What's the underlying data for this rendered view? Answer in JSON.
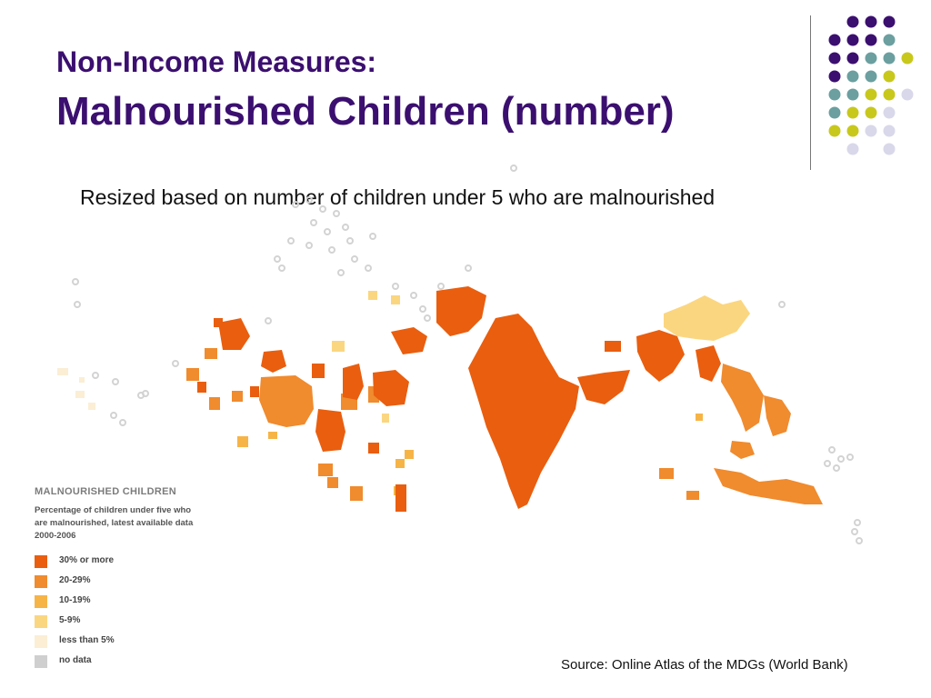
{
  "title": {
    "line1": "Non-Income Measures:",
    "line2": "Malnourished Children (number)"
  },
  "subtitle": "Resized based on number of children under 5 who are malnourished",
  "legend": {
    "title": "MALNOURISHED CHILDREN",
    "description": "Percentage of children under five who are malnourished, latest available data 2000-2006",
    "items": [
      {
        "label": "30% or more",
        "color": "#e95e0f"
      },
      {
        "label": "20-29%",
        "color": "#f08b2e"
      },
      {
        "label": "10-19%",
        "color": "#f6b447"
      },
      {
        "label": "5-9%",
        "color": "#fbd680"
      },
      {
        "label": "less than 5%",
        "color": "#fbeed4"
      },
      {
        "label": "no data",
        "color": "#cfcfcf"
      }
    ]
  },
  "source": "Source: Online Atlas of the MDGs (World Bank)",
  "colors": {
    "title": "#3b0f6f",
    "dot_purple": "#3b0f6f",
    "dot_teal": "#6b9fa0",
    "dot_yellow": "#c8c81c",
    "dot_lavender": "#d8d8ea"
  }
}
